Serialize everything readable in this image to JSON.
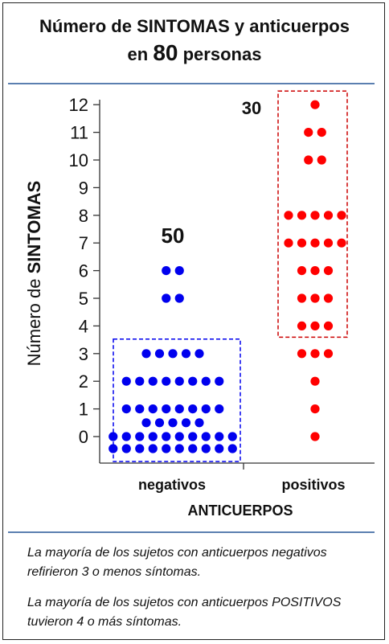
{
  "title": {
    "line1": "Número de SINTOMAS y anticuerpos",
    "line2_prefix": "en ",
    "line2_number": "80",
    "line2_suffix": " personas"
  },
  "chart_data": {
    "type": "scatter",
    "title": "Número de SINTOMAS y anticuerpos en 80 personas",
    "xlabel": "ANTICUERPOS",
    "ylabel_prefix": "Número de ",
    "ylabel_bold": "SINTOMAS",
    "categories": [
      "negativos",
      "positivos"
    ],
    "yticks": [
      0,
      1,
      2,
      3,
      4,
      5,
      6,
      7,
      8,
      9,
      10,
      11,
      12
    ],
    "ylim": [
      0,
      12
    ],
    "series": [
      {
        "name": "negativos",
        "color": "#0000ee",
        "total_label": "50",
        "counts": [
          {
            "y": 0,
            "n": 20
          },
          {
            "y": 0.5,
            "n": 5
          },
          {
            "y": 1,
            "n": 8
          },
          {
            "y": 2,
            "n": 8
          },
          {
            "y": 3,
            "n": 5
          },
          {
            "y": 5,
            "n": 2
          },
          {
            "y": 6,
            "n": 2
          }
        ]
      },
      {
        "name": "positivos",
        "color": "#ff0000",
        "total_label": "30",
        "counts": [
          {
            "y": 0,
            "n": 1
          },
          {
            "y": 1,
            "n": 1
          },
          {
            "y": 2,
            "n": 1
          },
          {
            "y": 3,
            "n": 3
          },
          {
            "y": 4,
            "n": 3
          },
          {
            "y": 5,
            "n": 3
          },
          {
            "y": 6,
            "n": 3
          },
          {
            "y": 7,
            "n": 5
          },
          {
            "y": 8,
            "n": 5
          },
          {
            "y": 10,
            "n": 2
          },
          {
            "y": 11,
            "n": 2
          },
          {
            "y": 12,
            "n": 1
          }
        ]
      }
    ],
    "highlight_boxes": [
      {
        "series": "negativos",
        "y_range": [
          0,
          3
        ],
        "style": "dashed",
        "color": "#0000ee"
      },
      {
        "series": "positivos",
        "y_range": [
          4,
          12
        ],
        "style": "dashed",
        "color": "#cc0000"
      }
    ]
  },
  "notes": [
    "La mayoría de los sujetos con anticuerpos negativos refirieron 3 o menos síntomas.",
    "La mayoría de los sujetos con anticuerpos POSITIVOS tuvieron 4 o más síntomas."
  ]
}
